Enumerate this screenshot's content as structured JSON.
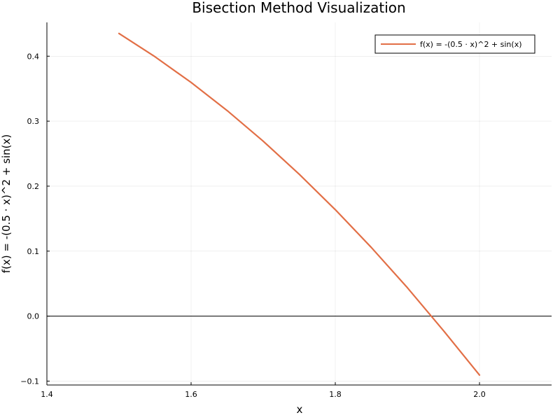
{
  "chart_data": {
    "type": "line",
    "title": "Bisection Method Visualization",
    "xlabel": "x",
    "ylabel": "f(x) = -(0.5 · x)^2 + sin(x)",
    "xlim": [
      1.4,
      2.1
    ],
    "ylim": [
      -0.106,
      0.452
    ],
    "xticks": [
      1.4,
      1.6,
      1.8,
      2.0
    ],
    "xtick_labels": [
      "1.4",
      "1.6",
      "1.8",
      "2.0"
    ],
    "yticks": [
      -0.1,
      0.0,
      0.1,
      0.2,
      0.3,
      0.4
    ],
    "ytick_labels": [
      "−0.1",
      "0.0",
      "0.1",
      "0.2",
      "0.3",
      "0.4"
    ],
    "grid": true,
    "legend_position": "top-right",
    "reference_line": {
      "y": 0,
      "color": "#000000"
    },
    "series": [
      {
        "name": "f(x) = -(0.5 · x)^2 + sin(x)",
        "color": "#e26f46",
        "x": [
          1.5,
          1.55,
          1.6,
          1.65,
          1.7,
          1.75,
          1.8,
          1.85,
          1.9,
          1.95,
          2.0
        ],
        "y": [
          0.435,
          0.3991,
          0.3596,
          0.3163,
          0.2692,
          0.2183,
          0.1638,
          0.1056,
          0.0437,
          -0.0223,
          -0.0907
        ]
      }
    ]
  }
}
